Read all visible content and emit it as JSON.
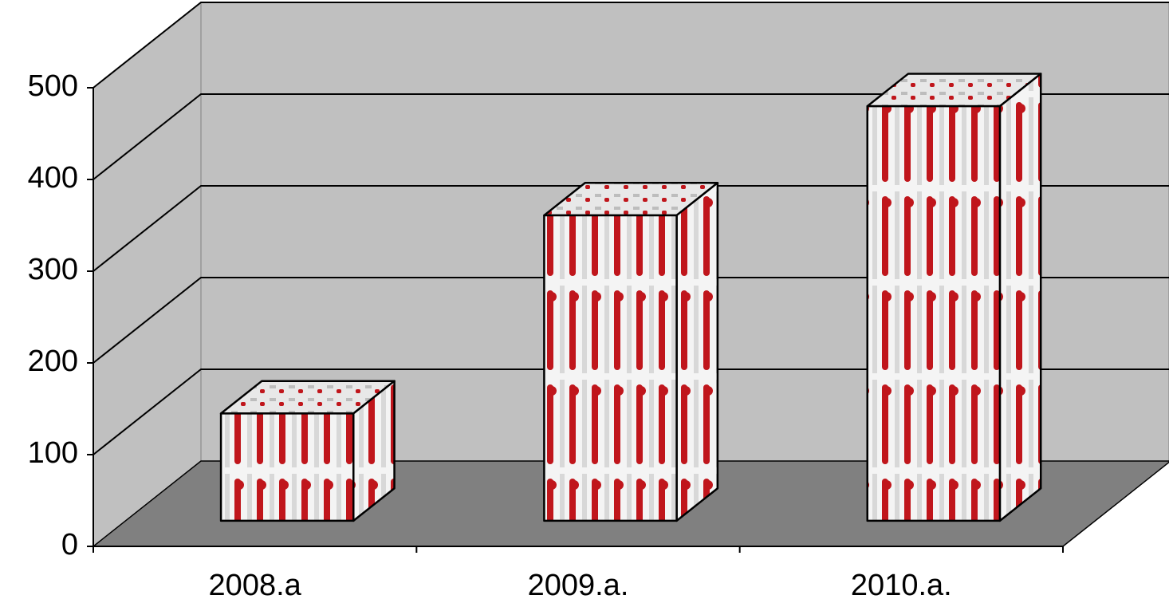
{
  "chart_data": {
    "type": "bar3d",
    "categories": [
      "2008.a",
      "2009.a.",
      "2010.a."
    ],
    "values": [
      117,
      333,
      452
    ],
    "color": "#c0161c",
    "ylim": [
      0,
      500
    ],
    "yticks": [
      0,
      100,
      200,
      300,
      400,
      500
    ],
    "grid": true
  }
}
